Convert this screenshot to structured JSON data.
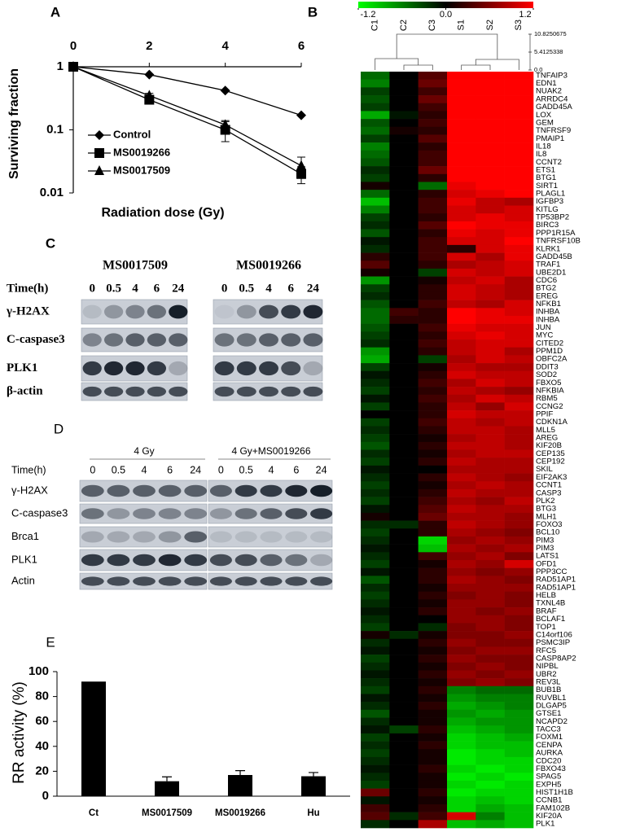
{
  "chart_data": [
    {
      "type": "line",
      "title": "A",
      "x": [
        0,
        2,
        4,
        6
      ],
      "xlim": [
        0,
        6
      ],
      "xticks": [
        0,
        2,
        4,
        6
      ],
      "ylim": [
        0.01,
        1
      ],
      "yticks": [
        1,
        0.1,
        0.01
      ],
      "log_y": true,
      "xlabel": "Radiation dose (Gy)",
      "ylabel": "Surviving fraction",
      "series": [
        {
          "name": "Control",
          "color": "#000000",
          "marker": "diamond",
          "values": [
            1,
            0.75,
            0.42,
            0.17
          ],
          "errors": [
            0,
            0,
            0,
            0
          ]
        },
        {
          "name": "MS0019266",
          "color": "#000000",
          "marker": "square",
          "values": [
            1,
            0.3,
            0.1,
            0.02
          ],
          "errors": [
            0,
            0.03,
            0.035,
            0.006
          ]
        },
        {
          "name": "MS0017509",
          "color": "#000000",
          "marker": "triangle",
          "values": [
            1,
            0.35,
            0.12,
            0.027
          ],
          "errors": [
            0,
            0.03,
            0.02,
            0.01
          ]
        }
      ]
    },
    {
      "type": "heatmap",
      "title": "B",
      "columns": [
        "C1",
        "C2",
        "C3",
        "S1",
        "S2",
        "S3"
      ],
      "scale": {
        "min": -1.2,
        "max": 1.2,
        "ticks": [
          -1.2,
          {
            "value": 0,
            "label": "0.0"
          },
          1.2
        ],
        "colors": [
          "#00ff00",
          "#000000",
          "#ff0000"
        ]
      },
      "dendrogram_lim": [
        0,
        10.8250675
      ],
      "dendrogram_ticks": [
        10.8250675,
        5.4125338,
        {
          "value": 0,
          "label": "0.0"
        }
      ],
      "rows": [
        "TNFAIP3",
        "EDN1",
        "NUAK2",
        "ARRDC4",
        "GADD45A",
        "LOX",
        "GEM",
        "TNFRSF9",
        "PMAIP1",
        "IL18",
        "IL8",
        "CCNT2",
        "ETS1",
        "BTG1",
        "SIRT1",
        "PLAGL1",
        "IGFBP3",
        "KITLG",
        "TP53BP2",
        "BIRC3",
        "PPP1R15A",
        "TNFRSF10B",
        "KLRK1",
        "GADD45B",
        "TRAF1",
        "UBE2D1",
        "CDC6",
        "BTG2",
        "EREG",
        "NFKB1",
        "INHBA",
        "INHBA",
        "JUN",
        "MYC",
        "CITED2",
        "PPM1D",
        "OBFC2A",
        "DDIT3",
        "SOD2",
        "FBXO5",
        "NFKBIA",
        "RBM5",
        "CCNG2",
        "PPIF",
        "CDKN1A",
        "MLL5",
        "AREG",
        "KIF20B",
        "CEP135",
        "CEP192",
        "SKIL",
        "EIF2AK3",
        "CCNT1",
        "CASP3",
        "PLK2",
        "BTG3",
        "MLH1",
        "FOXO3",
        "BCL10",
        "PIM3",
        "PIM3",
        "LATS1",
        "OFD1",
        "PPP3CC",
        "RAD51AP1",
        "RAD51AP1",
        "HELB",
        "TXNL4B",
        "BRAF",
        "BCLAF1",
        "TOP1",
        "C14orf106",
        "PSMC3IP",
        "RFC5",
        "CASP8AP2",
        "NIPBL",
        "UBR2",
        "REV3L",
        "BUB1B",
        "RUVBL1",
        "DLGAP5",
        "GTSE1",
        "NCAPD2",
        "TACC3",
        "FOXM1",
        "CENPA",
        "AURKA",
        "CDC20",
        "FBXO43",
        "SPAG5",
        "EXPH5",
        "HIST1H1B",
        "CCNB1",
        "FAM102B",
        "KIF20A",
        "PLK1"
      ],
      "values": [
        [
          -0.5,
          0,
          0.4,
          1.2,
          1.2,
          1.2
        ],
        [
          -0.6,
          0,
          0.5,
          1.2,
          1.2,
          1.2
        ],
        [
          -0.3,
          0,
          0.3,
          1.2,
          1.2,
          1.2
        ],
        [
          -0.4,
          0,
          0.5,
          1.2,
          1.2,
          1.2
        ],
        [
          -0.3,
          0,
          0.3,
          1.2,
          1.2,
          1.2
        ],
        [
          -0.8,
          -0.1,
          0.2,
          1.2,
          1.2,
          1.2
        ],
        [
          -0.4,
          0,
          0.3,
          1.2,
          1.2,
          1.2
        ],
        [
          -0.5,
          0.1,
          0.2,
          1.2,
          1.2,
          1.2
        ],
        [
          -0.3,
          0,
          0.4,
          1.2,
          1.2,
          1.2
        ],
        [
          -0.6,
          0,
          0.2,
          1.2,
          1.2,
          1.2
        ],
        [
          -0.5,
          0,
          0.3,
          1.2,
          1.2,
          1.2
        ],
        [
          -0.4,
          0,
          0.3,
          1.2,
          1.2,
          1.2
        ],
        [
          -0.2,
          0,
          0.5,
          1.2,
          1.2,
          1.2
        ],
        [
          -0.3,
          0,
          0.2,
          1.2,
          1.2,
          1.2
        ],
        [
          0.1,
          0,
          -0.5,
          1.1,
          1.2,
          1.2
        ],
        [
          -0.5,
          0,
          0.2,
          1.0,
          1.1,
          1.2
        ],
        [
          -0.9,
          0,
          0.3,
          1.1,
          0.9,
          0.8
        ],
        [
          -0.6,
          0,
          0.3,
          1.0,
          0.9,
          1.0
        ],
        [
          -0.3,
          0,
          0.2,
          1.0,
          1.1,
          1.0
        ],
        [
          -0.2,
          0,
          0.4,
          1.2,
          1.1,
          1.1
        ],
        [
          -0.4,
          0,
          0.2,
          1.1,
          1.0,
          1.1
        ],
        [
          -0.1,
          0,
          0.3,
          1.0,
          1.0,
          1.2
        ],
        [
          -0.2,
          0,
          0.3,
          0.2,
          1.0,
          1.1
        ],
        [
          0.2,
          0,
          0.3,
          1.0,
          0.8,
          1.1
        ],
        [
          0.4,
          0,
          0.2,
          0.8,
          0.9,
          1.0
        ],
        [
          0.1,
          0,
          -0.3,
          1.0,
          0.9,
          1.0
        ],
        [
          -0.7,
          0,
          0.1,
          0.9,
          1.0,
          0.8
        ],
        [
          -0.3,
          0,
          0.2,
          1.0,
          0.9,
          0.8
        ],
        [
          -0.2,
          0,
          0.2,
          1.0,
          0.9,
          0.8
        ],
        [
          -0.4,
          0,
          0.3,
          0.9,
          0.8,
          1.0
        ],
        [
          -0.5,
          0.3,
          0.2,
          1.2,
          1.1,
          1.0
        ],
        [
          -0.5,
          0.2,
          0.2,
          1.2,
          1.1,
          1.1
        ],
        [
          -0.4,
          0,
          0.3,
          1.1,
          1.0,
          1.0
        ],
        [
          -0.3,
          0,
          0.2,
          1.0,
          1.1,
          1.0
        ],
        [
          -0.2,
          0,
          0.3,
          0.9,
          1.0,
          1.0
        ],
        [
          -0.7,
          0,
          0.2,
          0.9,
          1.0,
          0.8
        ],
        [
          -0.8,
          0,
          -0.3,
          0.8,
          1.0,
          0.9
        ],
        [
          -0.3,
          0,
          0.1,
          0.9,
          0.8,
          0.8
        ],
        [
          -0.1,
          0,
          0.2,
          1.0,
          0.9,
          0.9
        ],
        [
          -0.2,
          0,
          0.3,
          0.8,
          1.0,
          0.9
        ],
        [
          -0.3,
          0,
          0.2,
          0.9,
          0.8,
          0.7
        ],
        [
          -0.1,
          0,
          0.3,
          0.8,
          1.0,
          0.9
        ],
        [
          -0.3,
          0,
          0.2,
          0.9,
          0.7,
          1.0
        ],
        [
          0,
          0,
          0.2,
          1.0,
          0.9,
          0.9
        ],
        [
          -0.3,
          0,
          0.3,
          0.9,
          0.8,
          0.9
        ],
        [
          -0.2,
          0,
          0.2,
          0.9,
          0.9,
          0.8
        ],
        [
          -0.3,
          0,
          0.1,
          0.8,
          0.9,
          0.8
        ],
        [
          -0.4,
          0,
          0.2,
          0.9,
          0.9,
          0.8
        ],
        [
          -0.2,
          0,
          0.1,
          0.8,
          0.9,
          0.9
        ],
        [
          -0.3,
          0,
          0.2,
          0.9,
          0.8,
          0.8
        ],
        [
          -0.1,
          0,
          0,
          0.8,
          0.8,
          0.8
        ],
        [
          -0.2,
          0,
          0.2,
          0.9,
          0.8,
          0.7
        ],
        [
          -0.3,
          0,
          0.1,
          0.8,
          0.9,
          0.8
        ],
        [
          -0.2,
          0,
          0.2,
          0.9,
          0.8,
          0.8
        ],
        [
          -0.3,
          0,
          0.3,
          0.8,
          0.7,
          0.9
        ],
        [
          -0.1,
          0,
          0.4,
          0.9,
          0.8,
          0.8
        ],
        [
          0.1,
          0,
          0.5,
          0.8,
          0.8,
          0.7
        ],
        [
          -0.2,
          -0.2,
          0.2,
          0.9,
          0.8,
          0.7
        ],
        [
          -0.3,
          0,
          0.2,
          0.8,
          0.7,
          0.6
        ],
        [
          -0.2,
          0,
          -1.0,
          0.7,
          0.8,
          0.7
        ],
        [
          -0.1,
          0,
          -0.9,
          0.8,
          0.7,
          0.8
        ],
        [
          -0.2,
          0,
          0.3,
          0.7,
          0.8,
          0.6
        ],
        [
          -0.3,
          0,
          0.1,
          0.8,
          0.7,
          1.0
        ],
        [
          -0.1,
          0,
          0.2,
          0.7,
          0.6,
          0.7
        ],
        [
          -0.4,
          0,
          0.2,
          0.8,
          0.7,
          0.6
        ],
        [
          -0.2,
          0,
          0.1,
          0.7,
          0.7,
          0.7
        ],
        [
          -0.3,
          0,
          0.2,
          0.6,
          0.7,
          0.6
        ],
        [
          -0.2,
          0,
          0.1,
          0.7,
          0.7,
          0.6
        ],
        [
          -0.1,
          0,
          0.2,
          0.7,
          0.6,
          0.7
        ],
        [
          -0.2,
          0,
          0,
          0.7,
          0.7,
          0.6
        ],
        [
          -0.3,
          0,
          -0.2,
          0.6,
          0.7,
          0.6
        ],
        [
          0.1,
          -0.2,
          0.1,
          0.6,
          0.6,
          0.7
        ],
        [
          -0.2,
          0,
          0.2,
          0.7,
          0.6,
          0.6
        ],
        [
          -0.1,
          0,
          0.1,
          0.6,
          0.7,
          0.7
        ],
        [
          -0.3,
          0,
          0.2,
          0.7,
          0.6,
          0.6
        ],
        [
          -0.2,
          0,
          0.1,
          0.6,
          0.7,
          0.6
        ],
        [
          -0.1,
          0,
          0.2,
          0.7,
          0.6,
          0.7
        ],
        [
          -0.2,
          0,
          0.1,
          0.6,
          0.7,
          0.6
        ],
        [
          -0.3,
          0,
          0.2,
          -0.6,
          -0.5,
          -0.5
        ],
        [
          -0.1,
          0,
          0.1,
          -0.7,
          -0.6,
          -0.6
        ],
        [
          -0.2,
          0,
          0.2,
          -0.8,
          -0.7,
          -0.6
        ],
        [
          -0.4,
          0,
          0.1,
          -0.7,
          -0.8,
          -0.7
        ],
        [
          -0.2,
          0,
          0.1,
          -0.8,
          -0.7,
          -0.7
        ],
        [
          -0.1,
          -0.3,
          0.2,
          -0.9,
          -0.8,
          -0.7
        ],
        [
          -0.3,
          0,
          0.1,
          -1.0,
          -0.9,
          -0.8
        ],
        [
          -0.2,
          0,
          0.2,
          -1.0,
          -0.9,
          -0.9
        ],
        [
          -0.3,
          0,
          0.1,
          -1.1,
          -1.0,
          -0.9
        ],
        [
          -0.2,
          0,
          0.1,
          -1.1,
          -1.0,
          -1.0
        ],
        [
          -0.1,
          0,
          0.2,
          -1.0,
          -1.1,
          -1.0
        ],
        [
          -0.2,
          0,
          0.1,
          -1.1,
          -1.0,
          -1.1
        ],
        [
          -0.3,
          0,
          0.1,
          -1.0,
          -1.1,
          -1.0
        ],
        [
          0.5,
          0,
          0.2,
          -1.1,
          -1.0,
          -1.0
        ],
        [
          -0.1,
          0,
          0.1,
          -1.0,
          -0.9,
          -1.0
        ],
        [
          0.3,
          0,
          0.2,
          -1.0,
          -0.8,
          -0.9
        ],
        [
          0.4,
          -0.2,
          0.3,
          1.0,
          -0.6,
          -0.9
        ],
        [
          -0.2,
          0,
          0.8,
          -0.9,
          -0.8,
          -0.9
        ]
      ]
    },
    {
      "type": "bar",
      "title": "E",
      "categories": [
        "Ct",
        "MS0017509",
        "MS0019266",
        "Hu"
      ],
      "values": [
        92,
        12,
        17,
        16
      ],
      "errors": [
        0,
        3.5,
        3.5,
        3
      ],
      "color": "#000000",
      "ylim": [
        0,
        100
      ],
      "yticks": [
        0,
        20,
        40,
        60,
        80,
        100
      ],
      "ylabel": "RR activity (%)"
    }
  ],
  "blots": [
    {
      "label": "C",
      "time_label": "Time(h)",
      "groups": [
        {
          "title": "MS0017509",
          "times": [
            "0",
            "0.5",
            "4",
            "6",
            "24"
          ]
        },
        {
          "title": "MS0019266",
          "times": [
            "0",
            "0.5",
            "4",
            "6",
            "24"
          ]
        }
      ],
      "rows": [
        "γ-H2AX",
        "C-caspase3",
        "PLK1",
        "β-actin"
      ]
    },
    {
      "label": "D",
      "time_label": "Time(h)",
      "groups": [
        {
          "title": "4 Gy",
          "times": [
            "0",
            "0.5",
            "4",
            "6",
            "24"
          ]
        },
        {
          "title": "4 Gy+MS0019266",
          "times": [
            "0",
            "0.5",
            "4",
            "6",
            "24"
          ]
        }
      ],
      "rows": [
        "γ-H2AX",
        "C-caspase3",
        "Brca1",
        "PLK1",
        "Actin"
      ]
    }
  ]
}
